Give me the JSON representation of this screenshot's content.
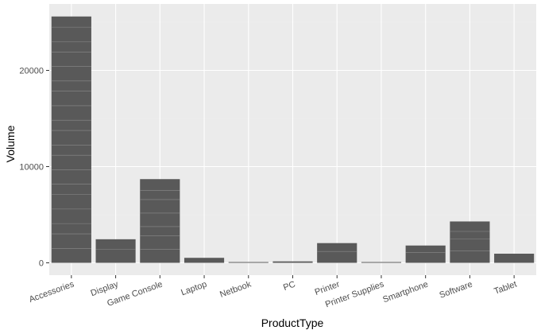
{
  "chart_data": {
    "type": "bar",
    "title": "",
    "xlabel": "ProductType",
    "ylabel": "Volume",
    "categories": [
      "Accessories",
      "Display",
      "Game Console",
      "Laptop",
      "Netbook",
      "PC",
      "Printer",
      "Printer Supplies",
      "Smartphone",
      "Software",
      "Tablet"
    ],
    "values": [
      25600,
      2450,
      8700,
      520,
      60,
      150,
      2050,
      80,
      1800,
      4300,
      950
    ],
    "ylim": [
      -1280,
      26900
    ],
    "yticks": [
      0,
      10000,
      20000
    ],
    "ytick_labels": [
      "0",
      "10000",
      "20000"
    ],
    "grid": true,
    "colors": {
      "bar": "#595959",
      "panel": "#ebebeb",
      "grid_major": "#ffffff",
      "grid_minor": "#f2f2f2",
      "separator": "#8c8c8c"
    }
  }
}
